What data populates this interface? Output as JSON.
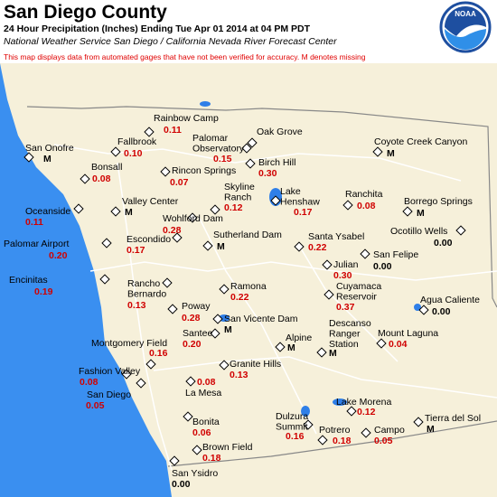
{
  "header": {
    "title": "San Diego County",
    "subtitle": "24 Hour Precipitation (Inches) Ending Tue Apr 01 2014 at 04 PM PDT",
    "source": "National Weather Service San Diego / California Nevada River Forecast Center",
    "disclaimer": "This map displays data from automated gages that have not been verified for accuracy.  M denotes missing",
    "logo": "NOAA"
  },
  "stations": [
    {
      "label": "San Onofre",
      "value": "M"
    },
    {
      "label": "Fallbrook",
      "value": "0.10"
    },
    {
      "label": "Rainbow Camp",
      "value": "0.11"
    },
    {
      "label": [
        "Palomar",
        "Observatory"
      ],
      "value": "0.15"
    },
    {
      "label": "Oak Grove"
    },
    {
      "label": "Birch Hill",
      "value": "0.30"
    },
    {
      "label": "Coyote Creek Canyon",
      "value": "M"
    },
    {
      "label": "Bonsall",
      "value": "0.08"
    },
    {
      "label": "Rincon Springs",
      "value": "0.07"
    },
    {
      "label": [
        "Skyline",
        "Ranch"
      ],
      "value": "0.12"
    },
    {
      "label": [
        "Lake",
        "Henshaw"
      ],
      "value": "0.17"
    },
    {
      "label": "Ranchita",
      "value": "0.08"
    },
    {
      "label": "Borrego Springs",
      "value": "M"
    },
    {
      "label": "Valley Center",
      "value": "M"
    },
    {
      "label": "Oceanside",
      "value": "0.11"
    },
    {
      "label": "Wohlford Dam",
      "value": "0.28"
    },
    {
      "label": "Sutherland Dam",
      "value": "M"
    },
    {
      "label": "Escondido",
      "value": "0.17"
    },
    {
      "label": "Ocotillo Wells",
      "value": "0.00"
    },
    {
      "label": "Santa Ysabel",
      "value": "0.22"
    },
    {
      "label": "Palomar Airport",
      "value": "0.20"
    },
    {
      "label": "San Felipe",
      "value": "0.00"
    },
    {
      "label": "Julian",
      "value": "0.30"
    },
    {
      "label": "Encinitas",
      "value": "0.19"
    },
    {
      "label": [
        "Rancho",
        "Bernardo"
      ],
      "value": "0.13"
    },
    {
      "label": "Ramona",
      "value": "0.22"
    },
    {
      "label": [
        "Cuyamaca",
        "Reservoir"
      ],
      "value": "0.37"
    },
    {
      "label": "Agua Caliente",
      "value": "0.00"
    },
    {
      "label": "Poway",
      "value": "0.28"
    },
    {
      "label": "San Vicente Dam",
      "value": "M"
    },
    {
      "label": [
        "Descanso",
        "Ranger",
        "Station"
      ],
      "value": "M"
    },
    {
      "label": "Santee",
      "value": "0.20"
    },
    {
      "label": "Mount Laguna",
      "value": "0.04"
    },
    {
      "label": "Alpine",
      "value": "M"
    },
    {
      "label": "Montgomery Field",
      "value": "0.16"
    },
    {
      "label": "Granite Hills",
      "value": "0.13"
    },
    {
      "label": "Fashion Valley",
      "value": "0.08"
    },
    {
      "label": "La Mesa",
      "value": "0.08"
    },
    {
      "label": "San Diego",
      "value": "0.05"
    },
    {
      "label": "Lake Morena",
      "value": "0.12"
    },
    {
      "label": [
        "Dulzura",
        "Summit"
      ],
      "value": "0.16"
    },
    {
      "label": "Bonita",
      "value": "0.06"
    },
    {
      "label": "Tierra del Sol",
      "value": "M"
    },
    {
      "label": "Potrero",
      "value": "0.18"
    },
    {
      "label": "Campo",
      "value": "0.05"
    },
    {
      "label": "Brown Field",
      "value": "0.18"
    },
    {
      "label": "San Ysidro",
      "value": "0.00"
    }
  ]
}
